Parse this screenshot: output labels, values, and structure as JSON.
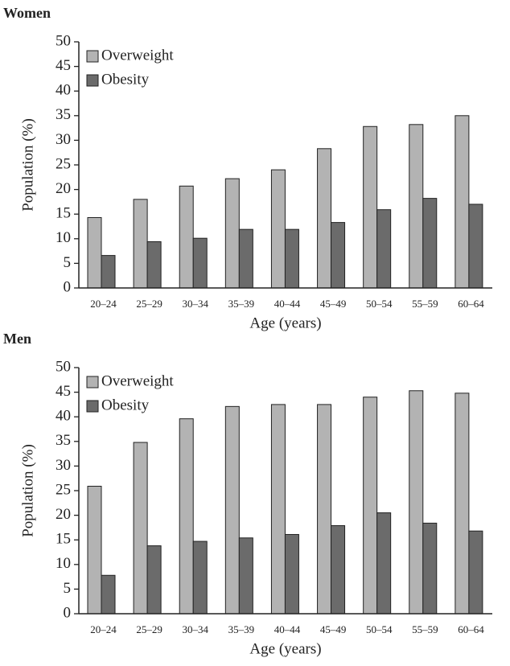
{
  "chart_data": [
    {
      "type": "bar",
      "title": "Women",
      "x_label": "Age (years)",
      "y_label": "Population (%)",
      "categories": [
        "20–24",
        "25–29",
        "30–34",
        "35–39",
        "40–44",
        "45–49",
        "50–54",
        "55–59",
        "60–64"
      ],
      "series": [
        {
          "name": "Overweight",
          "color": "#b3b3b3",
          "values": [
            14.3,
            18,
            20.7,
            22.2,
            24,
            28.3,
            32.8,
            33.2,
            35
          ]
        },
        {
          "name": "Obesity",
          "color": "#6b6b6b",
          "values": [
            6.6,
            9.4,
            10.1,
            11.9,
            11.9,
            13.3,
            15.9,
            18.2,
            17
          ]
        }
      ],
      "ylim": [
        0,
        50
      ],
      "yticks": [
        0,
        5,
        10,
        15,
        20,
        25,
        30,
        35,
        40,
        45,
        50
      ],
      "legend": "upper left"
    },
    {
      "type": "bar",
      "title": "Men",
      "x_label": "Age (years)",
      "y_label": "Population (%)",
      "categories": [
        "20–24",
        "25–29",
        "30–34",
        "35–39",
        "40–44",
        "45–49",
        "50–54",
        "55–59",
        "60–64"
      ],
      "series": [
        {
          "name": "Overweight",
          "color": "#b3b3b3",
          "values": [
            25.9,
            34.8,
            39.6,
            42.1,
            42.5,
            42.5,
            44,
            45.3,
            44.8
          ]
        },
        {
          "name": "Obesity",
          "color": "#6b6b6b",
          "values": [
            7.8,
            13.8,
            14.7,
            15.4,
            16.1,
            17.9,
            20.5,
            18.4,
            16.8
          ]
        }
      ],
      "ylim": [
        0,
        50
      ],
      "yticks": [
        0,
        5,
        10,
        15,
        20,
        25,
        30,
        35,
        40,
        45,
        50
      ],
      "legend": "upper left"
    }
  ]
}
